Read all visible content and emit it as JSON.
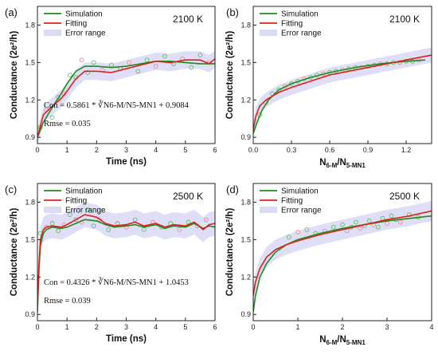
{
  "colors": {
    "simulation": "#1f8a1f",
    "fitting": "#e0201b",
    "error_fill": "#dadcf5",
    "sim_marker": "#5cbf5c",
    "fit_marker": "#f08a8a"
  },
  "chart_data": [
    {
      "panel": "(a)",
      "type": "line",
      "temperature": "2100 K",
      "xlabel": "Time (ns)",
      "ylabel": "Conductance (2e²/h)",
      "xlim": [
        0,
        6
      ],
      "ylim": [
        0.85,
        1.95
      ],
      "xticks": [
        0,
        1,
        2,
        3,
        4,
        5,
        6
      ],
      "yticks": [
        0.9,
        1.2,
        1.5,
        1.8
      ],
      "grid": false,
      "legend_position": "top-left",
      "legend": [
        "Simulation",
        "Fitting",
        "Error range"
      ],
      "formula": "Con = 0.5861 * ∛N6‑M/N5‑MN1 + 0.9084",
      "rmse": "Rmse = 0.035",
      "error_halfwidth": 0.07,
      "series": [
        {
          "name": "Simulation",
          "x": [
            0,
            0.2,
            0.5,
            0.8,
            1.0,
            1.3,
            1.6,
            2.0,
            2.5,
            3.0,
            3.5,
            4.0,
            4.5,
            5.0,
            5.5,
            6.0
          ],
          "values": [
            0.9,
            1.02,
            1.14,
            1.25,
            1.33,
            1.43,
            1.47,
            1.47,
            1.46,
            1.47,
            1.49,
            1.51,
            1.51,
            1.5,
            1.49,
            1.49
          ]
        },
        {
          "name": "Fitting",
          "x": [
            0,
            0.2,
            0.5,
            0.8,
            1.0,
            1.3,
            1.6,
            2.0,
            2.5,
            3.0,
            3.5,
            4.0,
            4.5,
            5.0,
            5.5,
            5.8,
            6.0
          ],
          "values": [
            0.9,
            1.08,
            1.15,
            1.21,
            1.27,
            1.37,
            1.43,
            1.43,
            1.42,
            1.45,
            1.48,
            1.51,
            1.5,
            1.52,
            1.52,
            1.49,
            1.53
          ]
        }
      ],
      "scatter": [
        {
          "x": [
            0.1,
            0.3,
            0.5,
            0.7,
            0.9,
            1.1,
            1.3,
            1.5,
            1.7,
            1.9,
            2.2,
            2.5,
            2.8,
            3.1,
            3.4,
            3.7,
            4.0,
            4.3,
            4.6,
            4.9,
            5.2,
            5.5,
            5.8
          ],
          "values": [
            0.98,
            1.12,
            1.06,
            1.22,
            1.25,
            1.4,
            1.38,
            1.52,
            1.42,
            1.5,
            1.44,
            1.48,
            1.45,
            1.5,
            1.43,
            1.52,
            1.47,
            1.55,
            1.49,
            1.53,
            1.46,
            1.56,
            1.5
          ]
        }
      ]
    },
    {
      "panel": "(b)",
      "type": "line",
      "temperature": "2100 K",
      "xlabel": "N6-M/N5-MN1",
      "ylabel": "Conductance (2e²/h)",
      "xlim": [
        0,
        1.4
      ],
      "ylim": [
        0.85,
        1.95
      ],
      "xticks": [
        0.0,
        0.3,
        0.6,
        0.9,
        1.2
      ],
      "xtick_labels": [
        "0.0",
        "0.3",
        "0.6",
        "0.9",
        "1.2"
      ],
      "yticks": [
        0.9,
        1.2,
        1.5,
        1.8
      ],
      "grid": false,
      "legend_position": "top-left",
      "legend": [
        "Simulation",
        "Fitting",
        "Error range"
      ],
      "error_halfwidth": 0.06,
      "series": [
        {
          "name": "Simulation",
          "x": [
            0,
            0.03,
            0.07,
            0.12,
            0.2,
            0.3,
            0.45,
            0.6,
            0.8,
            1.0,
            1.2,
            1.35
          ],
          "values": [
            0.93,
            1.02,
            1.12,
            1.2,
            1.28,
            1.33,
            1.38,
            1.42,
            1.46,
            1.49,
            1.51,
            1.52
          ]
        },
        {
          "name": "Fitting",
          "x": [
            0,
            0.02,
            0.05,
            0.1,
            0.15,
            0.2,
            0.3,
            0.45,
            0.6,
            0.8,
            1.0,
            1.2,
            1.4
          ],
          "values": [
            0.96,
            1.07,
            1.15,
            1.2,
            1.23,
            1.26,
            1.3,
            1.35,
            1.4,
            1.44,
            1.48,
            1.52,
            1.56
          ]
        }
      ],
      "scatter": [
        {
          "x": [
            0.05,
            0.1,
            0.15,
            0.2,
            0.25,
            0.3,
            0.35,
            0.4,
            0.45,
            0.5,
            0.55,
            0.6,
            0.65,
            0.7,
            0.75,
            0.8,
            0.85,
            0.9,
            0.95,
            1.0,
            1.05,
            1.1,
            1.15,
            1.2,
            1.25,
            1.3
          ],
          "values": [
            1.08,
            1.18,
            1.25,
            1.28,
            1.31,
            1.33,
            1.35,
            1.37,
            1.38,
            1.4,
            1.41,
            1.42,
            1.43,
            1.44,
            1.45,
            1.46,
            1.46,
            1.47,
            1.48,
            1.49,
            1.49,
            1.5,
            1.5,
            1.51,
            1.51,
            1.52
          ]
        }
      ]
    },
    {
      "panel": "(c)",
      "type": "line",
      "temperature": "2500 K",
      "xlabel": "Time (ns)",
      "ylabel": "Conductance (2e²/h)",
      "xlim": [
        0,
        6
      ],
      "ylim": [
        0.85,
        1.95
      ],
      "xticks": [
        0,
        1,
        2,
        3,
        4,
        5,
        6
      ],
      "yticks": [
        0.9,
        1.2,
        1.5,
        1.8
      ],
      "grid": false,
      "legend_position": "top-left",
      "legend": [
        "Simulation",
        "Fitting",
        "Error range"
      ],
      "formula": "Con = 0.4326 * ∛N6‑M/N5‑MN1 + 1.0453",
      "rmse": "Rmse = 0.039",
      "error_halfwidth": 0.1,
      "series": [
        {
          "name": "Simulation",
          "x": [
            0,
            0.05,
            0.1,
            0.2,
            0.3,
            0.5,
            0.8,
            1.0,
            1.3,
            1.6,
            2.0,
            2.3,
            2.6,
            3.0,
            3.3,
            3.6,
            4.0,
            4.3,
            4.6,
            5.0,
            5.3,
            5.6,
            5.8,
            6.0
          ],
          "values": [
            0.92,
            1.25,
            1.45,
            1.55,
            1.58,
            1.6,
            1.59,
            1.6,
            1.63,
            1.66,
            1.65,
            1.62,
            1.6,
            1.61,
            1.62,
            1.6,
            1.62,
            1.59,
            1.61,
            1.6,
            1.63,
            1.59,
            1.61,
            1.6
          ]
        },
        {
          "name": "Fitting",
          "x": [
            0,
            0.05,
            0.1,
            0.2,
            0.3,
            0.5,
            0.8,
            1.0,
            1.3,
            1.6,
            2.0,
            2.3,
            2.6,
            3.0,
            3.3,
            3.6,
            4.0,
            4.3,
            4.6,
            5.0,
            5.3,
            5.6,
            5.8,
            6.0
          ],
          "values": [
            0.95,
            1.3,
            1.5,
            1.58,
            1.6,
            1.61,
            1.6,
            1.62,
            1.66,
            1.7,
            1.68,
            1.63,
            1.61,
            1.62,
            1.64,
            1.61,
            1.63,
            1.6,
            1.62,
            1.61,
            1.64,
            1.58,
            1.62,
            1.63
          ]
        }
      ],
      "scatter": [
        {
          "x": [
            0.1,
            0.3,
            0.5,
            0.7,
            0.9,
            1.1,
            1.3,
            1.5,
            1.7,
            1.9,
            2.1,
            2.4,
            2.7,
            3.0,
            3.3,
            3.6,
            3.9,
            4.2,
            4.5,
            4.8,
            5.1,
            5.4,
            5.7
          ],
          "values": [
            1.55,
            1.6,
            1.63,
            1.57,
            1.62,
            1.7,
            1.66,
            1.64,
            1.74,
            1.61,
            1.66,
            1.58,
            1.63,
            1.6,
            1.66,
            1.58,
            1.64,
            1.6,
            1.63,
            1.58,
            1.64,
            1.61,
            1.66
          ]
        }
      ]
    },
    {
      "panel": "(d)",
      "type": "line",
      "temperature": "2500 K",
      "xlabel": "N6-M/N5-MN1",
      "ylabel": "Conductance (2e²/h)",
      "xlim": [
        0,
        4
      ],
      "ylim": [
        0.85,
        1.95
      ],
      "xticks": [
        0,
        1,
        2,
        3,
        4
      ],
      "yticks": [
        0.9,
        1.2,
        1.5,
        1.8
      ],
      "grid": false,
      "legend_position": "top-left",
      "legend": [
        "Simulation",
        "Fitting",
        "Error range"
      ],
      "error_halfwidth": 0.08,
      "series": [
        {
          "name": "Simulation",
          "x": [
            0,
            0.05,
            0.15,
            0.3,
            0.5,
            0.75,
            1.0,
            1.5,
            2.0,
            2.5,
            3.0,
            3.5,
            4.0
          ],
          "values": [
            0.92,
            1.05,
            1.2,
            1.31,
            1.4,
            1.46,
            1.5,
            1.55,
            1.59,
            1.62,
            1.65,
            1.67,
            1.69
          ]
        },
        {
          "name": "Fitting",
          "x": [
            0,
            0.05,
            0.15,
            0.3,
            0.5,
            0.75,
            1.0,
            1.5,
            2.0,
            2.5,
            3.0,
            3.5,
            4.0
          ],
          "values": [
            1.05,
            1.16,
            1.27,
            1.36,
            1.42,
            1.46,
            1.49,
            1.54,
            1.58,
            1.62,
            1.66,
            1.69,
            1.73
          ]
        }
      ],
      "scatter": [
        {
          "x": [
            0.8,
            1.0,
            1.2,
            1.4,
            1.6,
            1.8,
            2.0,
            2.1,
            2.2,
            2.3,
            2.4,
            2.5,
            2.6,
            2.7,
            2.8,
            2.9,
            3.0,
            3.1,
            3.2,
            3.3,
            3.5,
            3.7
          ],
          "values": [
            1.52,
            1.56,
            1.58,
            1.55,
            1.57,
            1.6,
            1.62,
            1.57,
            1.6,
            1.64,
            1.59,
            1.61,
            1.65,
            1.62,
            1.6,
            1.67,
            1.63,
            1.69,
            1.66,
            1.64,
            1.7,
            1.68
          ]
        }
      ]
    }
  ]
}
